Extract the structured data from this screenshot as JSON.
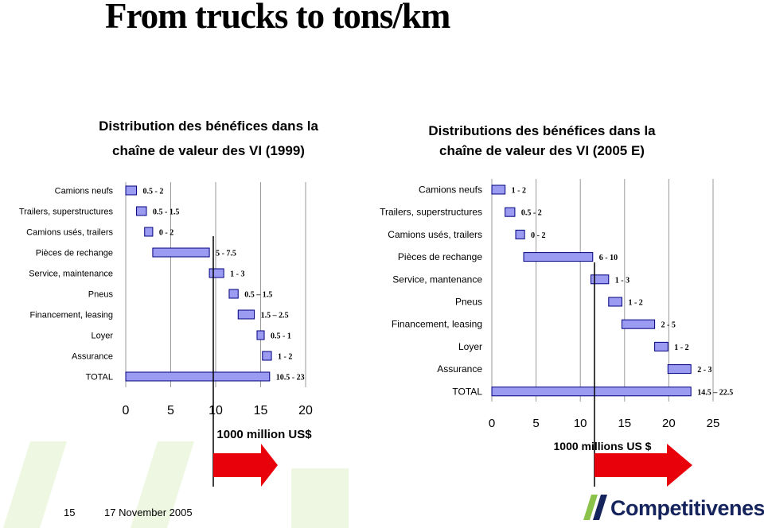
{
  "slide": {
    "title": "From trucks to tons/km",
    "page_number": "15",
    "date": "17 November 2005",
    "brand": "Competitiveness",
    "colors": {
      "bar_fill": "#9b9bf2",
      "bar_stroke": "#000080",
      "arrow": "#e8000a",
      "brand_green": "#8bc34a",
      "brand_navy": "#15245c"
    }
  },
  "chart_data": [
    {
      "type": "bar",
      "title_lines": [
        "Distribution des bénéfices dans la",
        "chaîne de valeur des VI (1999)"
      ],
      "xlabel": "1000 million US$",
      "xlim": [
        0,
        20
      ],
      "xticks": [
        "0",
        "5",
        "10",
        "15",
        "20"
      ],
      "grid": true,
      "categories": [
        "Camions neufs",
        "Trailers, superstructures",
        "Camions usés, trailers",
        "Pièces de rechange",
        "Service, maintenance",
        "Pneus",
        "Financement, leasing",
        "Loyer",
        "Assurance",
        "TOTAL"
      ],
      "bars": [
        [
          0,
          1.2
        ],
        [
          1.2,
          2.3
        ],
        [
          2.1,
          3.0
        ],
        [
          3.0,
          9.3
        ],
        [
          9.3,
          10.9
        ],
        [
          11.5,
          12.5
        ],
        [
          12.5,
          14.3
        ],
        [
          14.6,
          15.4
        ],
        [
          15.2,
          16.2
        ],
        [
          0,
          16.0
        ]
      ],
      "labels": [
        "0.5 - 2",
        "0.5 - 1.5",
        "0 - 2",
        "5 - 7.5",
        "1 - 3",
        "0.5 – 1.5",
        "1.5 – 2.5",
        "0.5 - 1",
        "1 - 2",
        "10.5 - 23"
      ]
    },
    {
      "type": "bar",
      "title_lines": [
        "Distributions des bénéfices dans la",
        "chaîne de valeur des VI (2005 E)"
      ],
      "xlabel": "1000 millions US $",
      "xlim": [
        0,
        25
      ],
      "xticks": [
        "0",
        "5",
        "10",
        "15",
        "20",
        "25"
      ],
      "grid": true,
      "categories": [
        "Camions neufs",
        "Trailers, superstructures",
        "Camions usés, trailers",
        "Pièces de rechange",
        "Service, mantenance",
        "Pneus",
        "Financement, leasing",
        "Loyer",
        "Assurance",
        "TOTAL"
      ],
      "bars": [
        [
          0,
          1.5
        ],
        [
          1.5,
          2.6
        ],
        [
          2.7,
          3.7
        ],
        [
          3.6,
          11.4
        ],
        [
          11.2,
          13.2
        ],
        [
          13.2,
          14.7
        ],
        [
          14.7,
          18.4
        ],
        [
          18.4,
          19.9
        ],
        [
          19.9,
          22.5
        ],
        [
          0,
          22.5
        ]
      ],
      "labels": [
        "1 - 2",
        "0.5 - 2",
        "0 - 2",
        "6 - 10",
        "1 - 3",
        "1 - 2",
        "2 - 5",
        "1 - 2",
        "2 - 3",
        "14.5 – 22.5"
      ]
    }
  ]
}
